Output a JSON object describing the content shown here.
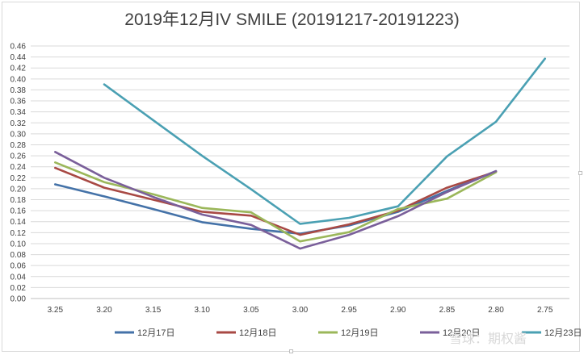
{
  "chart_data": {
    "type": "line",
    "title": "2019年12月IV SMILE (20191217-20191223)",
    "categories": [
      "3.25",
      "3.20",
      "3.15",
      "3.10",
      "3.05",
      "3.00",
      "2.95",
      "2.90",
      "2.85",
      "2.80",
      "2.75"
    ],
    "ylim": [
      0,
      0.46
    ],
    "yticks": [
      "0.00",
      "0.02",
      "0.04",
      "0.06",
      "0.08",
      "0.10",
      "0.12",
      "0.14",
      "0.16",
      "0.18",
      "0.20",
      "0.22",
      "0.24",
      "0.26",
      "0.28",
      "0.30",
      "0.32",
      "0.34",
      "0.36",
      "0.38",
      "0.40",
      "0.42",
      "0.44",
      "0.46"
    ],
    "grid": true,
    "legend_position": "bottom",
    "series": [
      {
        "name": "12月17日",
        "color": "#4472a8",
        "values": [
          0.208,
          0.186,
          0.163,
          0.139,
          0.127,
          0.118,
          0.133,
          0.158,
          0.196,
          0.232,
          null
        ]
      },
      {
        "name": "12月18日",
        "color": "#a84944",
        "values": [
          0.238,
          0.202,
          0.18,
          0.158,
          0.151,
          0.116,
          0.135,
          0.16,
          0.202,
          0.231,
          null
        ]
      },
      {
        "name": "12月19日",
        "color": "#9bb75a",
        "values": [
          0.248,
          0.212,
          0.19,
          0.165,
          0.157,
          0.104,
          0.121,
          0.163,
          0.182,
          0.23,
          null
        ]
      },
      {
        "name": "12月20日",
        "color": "#7a5f9a",
        "values": [
          0.267,
          0.22,
          0.185,
          0.153,
          0.134,
          0.091,
          0.116,
          0.15,
          0.194,
          0.232,
          null
        ]
      },
      {
        "name": "12月23日",
        "color": "#4aa0b3",
        "values": [
          null,
          0.39,
          0.325,
          0.26,
          0.199,
          0.136,
          0.147,
          0.168,
          0.259,
          0.322,
          0.437
        ]
      }
    ]
  },
  "watermark": "雪球：期权酱"
}
